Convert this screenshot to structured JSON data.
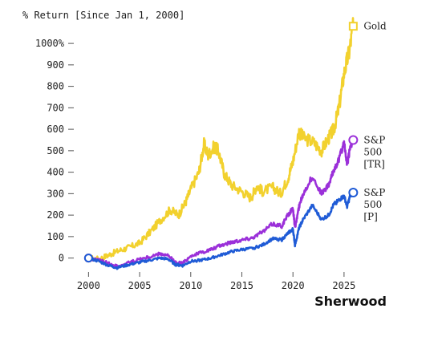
{
  "chart_data": {
    "type": "line",
    "title": "% Return [Since Jan 1, 2000]",
    "brand": "Sherwood",
    "xlim": [
      1999.5,
      2026.5
    ],
    "ylim": [
      -50,
      1120
    ],
    "x_ticks": [
      2000,
      2005,
      2010,
      2015,
      2020,
      2025
    ],
    "x_tick_labels": [
      "2000",
      "2005",
      "2010",
      "2015",
      "2020",
      "2025"
    ],
    "y_ticks": [
      0,
      100,
      200,
      300,
      400,
      500,
      600,
      700,
      800,
      900,
      1000
    ],
    "y_tick_labels": [
      "0",
      "100",
      "200",
      "300",
      "400",
      "500",
      "600",
      "700",
      "800",
      "900",
      "1000%"
    ],
    "grid": false,
    "legend": "inline-right",
    "series": [
      {
        "name": "Gold",
        "color": "#F2D12E",
        "end_marker": "square",
        "label_lines": [
          "Gold"
        ],
        "x": [
          2000,
          2001,
          2002,
          2003,
          2004,
          2005,
          2006,
          2007,
          2008,
          2008.8,
          2009.5,
          2010,
          2010.8,
          2011.3,
          2011.7,
          2012.3,
          2012.7,
          2013.3,
          2014,
          2015,
          2015.9,
          2016.5,
          2017,
          2018,
          2018.8,
          2019.5,
          2020,
          2020.6,
          2021,
          2022,
          2022.8,
          2023.5,
          2024,
          2024.5,
          2025,
          2025.5,
          2025.9
        ],
        "y": [
          0,
          -5,
          15,
          35,
          50,
          70,
          120,
          175,
          225,
          200,
          260,
          320,
          400,
          530,
          480,
          520,
          500,
          390,
          340,
          310,
          280,
          340,
          310,
          330,
          300,
          370,
          450,
          590,
          560,
          540,
          500,
          560,
          600,
          700,
          860,
          960,
          1080
        ]
      },
      {
        "name": "S&P 500 [TR]",
        "color": "#9B30D9",
        "end_marker": "circle",
        "label_lines": [
          "S&P",
          "500",
          "[TR]"
        ],
        "x": [
          2000,
          2001,
          2002,
          2002.8,
          2004,
          2005,
          2006,
          2007,
          2007.8,
          2008.5,
          2009.2,
          2010,
          2011,
          2012,
          2013,
          2014,
          2015,
          2016,
          2017,
          2018,
          2018.9,
          2019.5,
          2020,
          2020.2,
          2020.6,
          2021,
          2021.9,
          2022.8,
          2023.5,
          2024,
          2024.5,
          2025,
          2025.3,
          2025.6,
          2025.9
        ],
        "y": [
          0,
          -10,
          -25,
          -40,
          -20,
          -5,
          5,
          20,
          10,
          -20,
          -25,
          10,
          25,
          40,
          60,
          75,
          85,
          95,
          120,
          160,
          150,
          200,
          230,
          140,
          240,
          300,
          380,
          300,
          340,
          410,
          460,
          540,
          430,
          520,
          550
        ]
      },
      {
        "name": "S&P 500 [P]",
        "color": "#1F5BD6",
        "end_marker": "circle",
        "label_lines": [
          "S&P",
          "500",
          "[P]"
        ],
        "x": [
          2000,
          2001,
          2002,
          2002.8,
          2004,
          2005,
          2006,
          2007,
          2007.8,
          2008.5,
          2009.2,
          2010,
          2011,
          2012,
          2013,
          2014,
          2015,
          2016,
          2017,
          2018,
          2018.9,
          2019.5,
          2020,
          2020.2,
          2020.6,
          2021,
          2021.9,
          2022.8,
          2023.5,
          2024,
          2024.5,
          2025,
          2025.3,
          2025.6,
          2025.9
        ],
        "y": [
          0,
          -15,
          -35,
          -45,
          -30,
          -20,
          -10,
          0,
          -5,
          -30,
          -35,
          -15,
          -10,
          0,
          15,
          30,
          40,
          45,
          60,
          90,
          85,
          115,
          135,
          60,
          140,
          180,
          245,
          180,
          200,
          250,
          270,
          290,
          240,
          290,
          305
        ]
      }
    ]
  }
}
